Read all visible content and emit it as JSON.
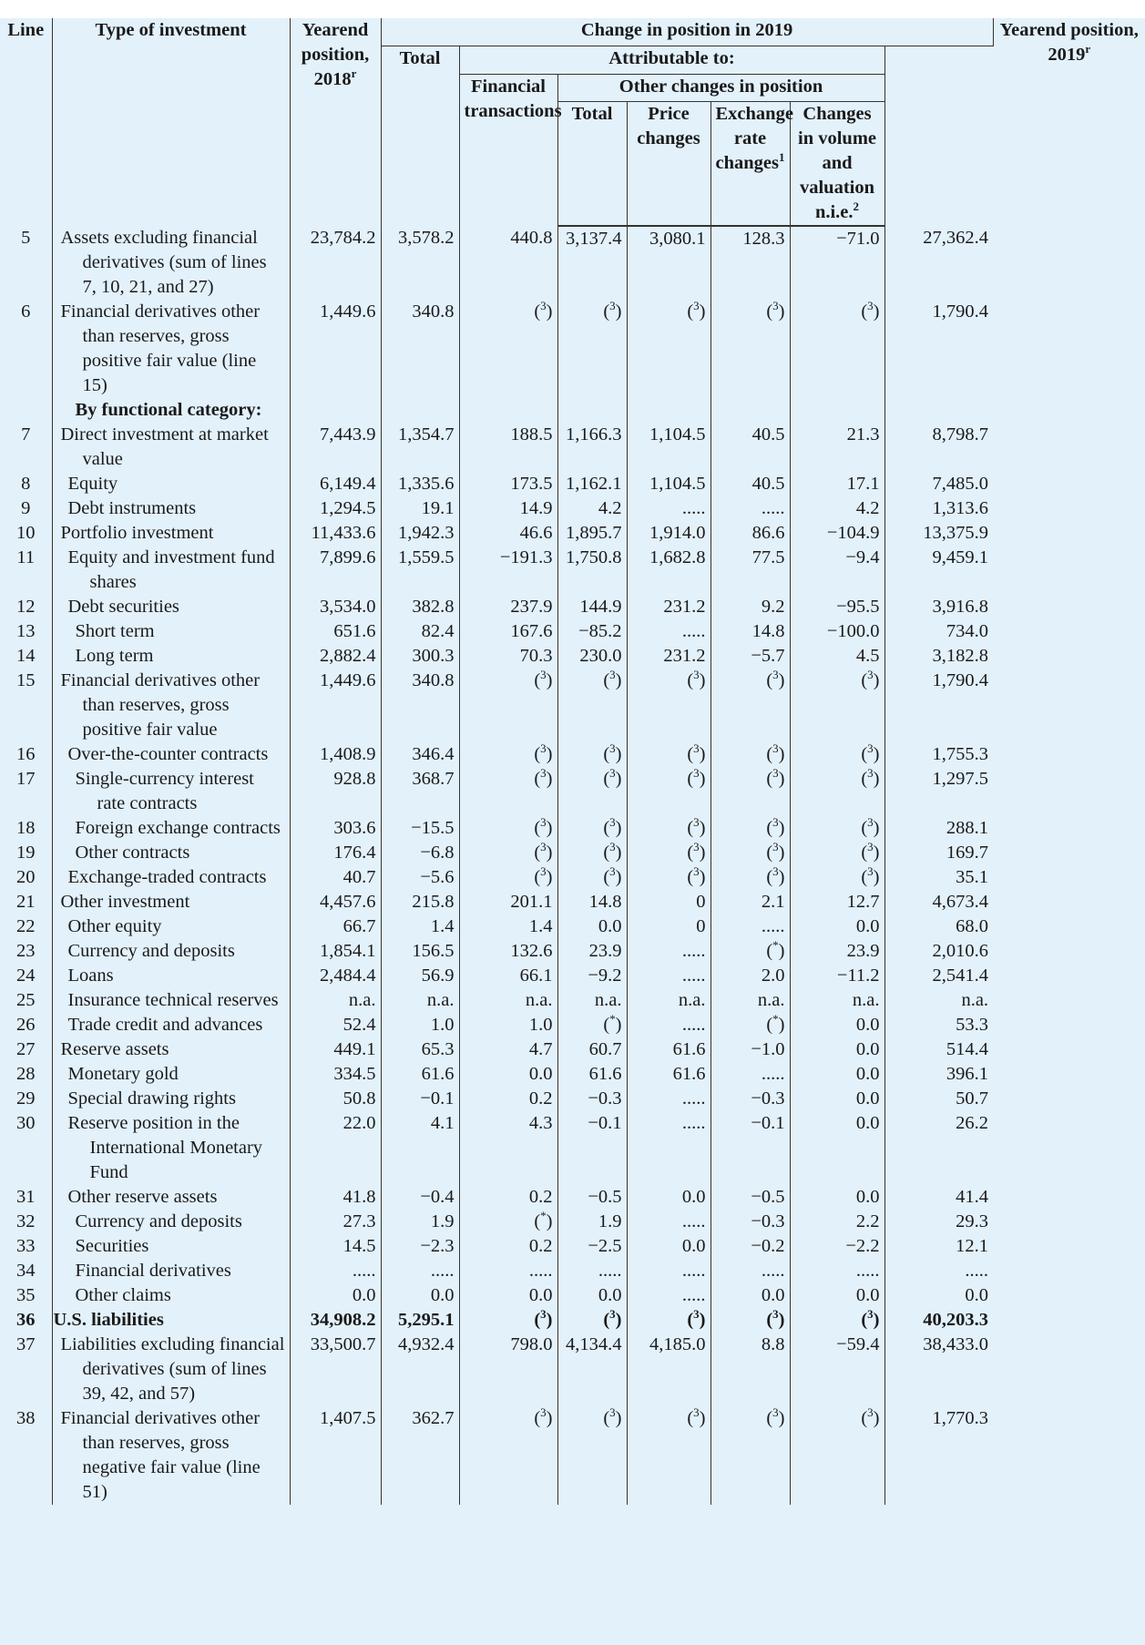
{
  "header": {
    "change_title": "Change in position in 2019",
    "attributable": "Attributable to:",
    "other_changes": "Other changes in position",
    "cols": {
      "line": "Line",
      "type": "Type of investment",
      "yearend2018": "Yearend position, 2018",
      "yearend2018_sup": "r",
      "total": "Total",
      "fin_trans": "Financial transactions",
      "oc_total": "Total",
      "price": "Price changes",
      "exch": "Exchange rate changes",
      "exch_sup": "1",
      "vol": "Changes in volume and valuation n.i.e.",
      "vol_sup": "2",
      "yearend2019": "Yearend position, 2019",
      "yearend2019_sup": "r"
    }
  },
  "rows": [
    {
      "line": "5",
      "label": "Assets excluding financial derivatives (sum of lines 7, 10, 21, and 27)",
      "indent": 0,
      "v": [
        "23,784.2",
        "3,578.2",
        "440.8",
        "3,137.4",
        "3,080.1",
        "128.3",
        "−71.0",
        "27,362.4"
      ]
    },
    {
      "line": "6",
      "label": "Financial derivatives other than reserves, gross positive fair value (line 15)",
      "indent": 0,
      "v": [
        "1,449.6",
        "340.8",
        "(3)",
        "(3)",
        "(3)",
        "(3)",
        "(3)",
        "1,790.4"
      ]
    },
    {
      "line": "",
      "label": "By functional category:",
      "indent": 0,
      "heading": true,
      "v": [
        "",
        "",
        "",
        "",
        "",
        "",
        "",
        ""
      ]
    },
    {
      "line": "7",
      "label": "Direct investment at market value",
      "indent": 0,
      "v": [
        "7,443.9",
        "1,354.7",
        "188.5",
        "1,166.3",
        "1,104.5",
        "40.5",
        "21.3",
        "8,798.7"
      ]
    },
    {
      "line": "8",
      "label": "Equity",
      "indent": 1,
      "v": [
        "6,149.4",
        "1,335.6",
        "173.5",
        "1,162.1",
        "1,104.5",
        "40.5",
        "17.1",
        "7,485.0"
      ]
    },
    {
      "line": "9",
      "label": "Debt instruments",
      "indent": 1,
      "v": [
        "1,294.5",
        "19.1",
        "14.9",
        "4.2",
        ".....",
        ".....",
        "4.2",
        "1,313.6"
      ]
    },
    {
      "line": "10",
      "label": "Portfolio investment",
      "indent": 0,
      "v": [
        "11,433.6",
        "1,942.3",
        "46.6",
        "1,895.7",
        "1,914.0",
        "86.6",
        "−104.9",
        "13,375.9"
      ]
    },
    {
      "line": "11",
      "label": "Equity and investment fund shares",
      "indent": 1,
      "v": [
        "7,899.6",
        "1,559.5",
        "−191.3",
        "1,750.8",
        "1,682.8",
        "77.5",
        "−9.4",
        "9,459.1"
      ]
    },
    {
      "line": "12",
      "label": "Debt securities",
      "indent": 1,
      "v": [
        "3,534.0",
        "382.8",
        "237.9",
        "144.9",
        "231.2",
        "9.2",
        "−95.5",
        "3,916.8"
      ]
    },
    {
      "line": "13",
      "label": "Short term",
      "indent": 2,
      "v": [
        "651.6",
        "82.4",
        "167.6",
        "−85.2",
        ".....",
        "14.8",
        "−100.0",
        "734.0"
      ]
    },
    {
      "line": "14",
      "label": "Long term",
      "indent": 2,
      "v": [
        "2,882.4",
        "300.3",
        "70.3",
        "230.0",
        "231.2",
        "−5.7",
        "4.5",
        "3,182.8"
      ]
    },
    {
      "line": "15",
      "label": "Financial derivatives other than reserves, gross positive fair value",
      "indent": 0,
      "v": [
        "1,449.6",
        "340.8",
        "(3)",
        "(3)",
        "(3)",
        "(3)",
        "(3)",
        "1,790.4"
      ]
    },
    {
      "line": "16",
      "label": "Over-the-counter contracts",
      "indent": 1,
      "v": [
        "1,408.9",
        "346.4",
        "(3)",
        "(3)",
        "(3)",
        "(3)",
        "(3)",
        "1,755.3"
      ]
    },
    {
      "line": "17",
      "label": "Single-currency interest rate contracts",
      "indent": 2,
      "v": [
        "928.8",
        "368.7",
        "(3)",
        "(3)",
        "(3)",
        "(3)",
        "(3)",
        "1,297.5"
      ]
    },
    {
      "line": "18",
      "label": "Foreign exchange contracts",
      "indent": 2,
      "v": [
        "303.6",
        "−15.5",
        "(3)",
        "(3)",
        "(3)",
        "(3)",
        "(3)",
        "288.1"
      ]
    },
    {
      "line": "19",
      "label": "Other contracts",
      "indent": 2,
      "v": [
        "176.4",
        "−6.8",
        "(3)",
        "(3)",
        "(3)",
        "(3)",
        "(3)",
        "169.7"
      ]
    },
    {
      "line": "20",
      "label": "Exchange-traded contracts",
      "indent": 1,
      "v": [
        "40.7",
        "−5.6",
        "(3)",
        "(3)",
        "(3)",
        "(3)",
        "(3)",
        "35.1"
      ]
    },
    {
      "line": "21",
      "label": "Other investment",
      "indent": 0,
      "v": [
        "4,457.6",
        "215.8",
        "201.1",
        "14.8",
        "0",
        "2.1",
        "12.7",
        "4,673.4"
      ]
    },
    {
      "line": "22",
      "label": "Other equity",
      "indent": 1,
      "v": [
        "66.7",
        "1.4",
        "1.4",
        "0.0",
        "0",
        ".....",
        "0.0",
        "68.0"
      ]
    },
    {
      "line": "23",
      "label": "Currency and deposits",
      "indent": 1,
      "v": [
        "1,854.1",
        "156.5",
        "132.6",
        "23.9",
        ".....",
        "(*)",
        "23.9",
        "2,010.6"
      ]
    },
    {
      "line": "24",
      "label": "Loans",
      "indent": 1,
      "v": [
        "2,484.4",
        "56.9",
        "66.1",
        "−9.2",
        ".....",
        "2.0",
        "−11.2",
        "2,541.4"
      ]
    },
    {
      "line": "25",
      "label": "Insurance technical reserves",
      "indent": 1,
      "v": [
        "n.a.",
        "n.a.",
        "n.a.",
        "n.a.",
        "n.a.",
        "n.a.",
        "n.a.",
        "n.a."
      ]
    },
    {
      "line": "26",
      "label": "Trade credit and advances",
      "indent": 1,
      "v": [
        "52.4",
        "1.0",
        "1.0",
        "(*)",
        ".....",
        "(*)",
        "0.0",
        "53.3"
      ]
    },
    {
      "line": "27",
      "label": "Reserve assets",
      "indent": 0,
      "v": [
        "449.1",
        "65.3",
        "4.7",
        "60.7",
        "61.6",
        "−1.0",
        "0.0",
        "514.4"
      ]
    },
    {
      "line": "28",
      "label": "Monetary gold",
      "indent": 1,
      "v": [
        "334.5",
        "61.6",
        "0.0",
        "61.6",
        "61.6",
        ".....",
        "0.0",
        "396.1"
      ]
    },
    {
      "line": "29",
      "label": "Special drawing rights",
      "indent": 1,
      "v": [
        "50.8",
        "−0.1",
        "0.2",
        "−0.3",
        ".....",
        "−0.3",
        "0.0",
        "50.7"
      ]
    },
    {
      "line": "30",
      "label": "Reserve position in the International Monetary Fund",
      "indent": 1,
      "v": [
        "22.0",
        "4.1",
        "4.3",
        "−0.1",
        ".....",
        "−0.1",
        "0.0",
        "26.2"
      ]
    },
    {
      "line": "31",
      "label": "Other reserve assets",
      "indent": 1,
      "v": [
        "41.8",
        "−0.4",
        "0.2",
        "−0.5",
        "0.0",
        "−0.5",
        "0.0",
        "41.4"
      ]
    },
    {
      "line": "32",
      "label": "Currency and deposits",
      "indent": 2,
      "v": [
        "27.3",
        "1.9",
        "(*)",
        "1.9",
        ".....",
        "−0.3",
        "2.2",
        "29.3"
      ]
    },
    {
      "line": "33",
      "label": "Securities",
      "indent": 2,
      "v": [
        "14.5",
        "−2.3",
        "0.2",
        "−2.5",
        "0.0",
        "−0.2",
        "−2.2",
        "12.1"
      ]
    },
    {
      "line": "34",
      "label": "Financial derivatives",
      "indent": 2,
      "v": [
        ".....",
        ".....",
        ".....",
        ".....",
        ".....",
        ".....",
        ".....",
        "....."
      ]
    },
    {
      "line": "35",
      "label": "Other claims",
      "indent": 2,
      "v": [
        "0.0",
        "0.0",
        "0.0",
        "0.0",
        ".....",
        "0.0",
        "0.0",
        "0.0"
      ]
    },
    {
      "line": "36",
      "label": "U.S. liabilities",
      "indent": -1,
      "bold": true,
      "v": [
        "34,908.2",
        "5,295.1",
        "(3)",
        "(3)",
        "(3)",
        "(3)",
        "(3)",
        "40,203.3"
      ]
    },
    {
      "line": "37",
      "label": "Liabilities excluding financial derivatives (sum of lines 39, 42, and 57)",
      "indent": 0,
      "v": [
        "33,500.7",
        "4,932.4",
        "798.0",
        "4,134.4",
        "4,185.0",
        "8.8",
        "−59.4",
        "38,433.0"
      ]
    },
    {
      "line": "38",
      "label": "Financial derivatives other than reserves, gross negative fair value (line 51)",
      "indent": 0,
      "v": [
        "1,407.5",
        "362.7",
        "(3)",
        "(3)",
        "(3)",
        "(3)",
        "(3)",
        "1,770.3"
      ]
    }
  ]
}
